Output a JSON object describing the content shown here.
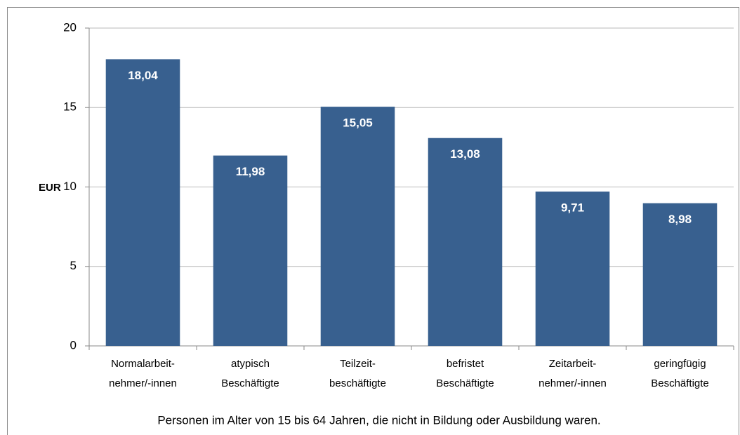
{
  "chart_data": {
    "type": "bar",
    "y_label": "EUR",
    "categories": [
      [
        "Normalarbeit-",
        "nehmer/-innen"
      ],
      [
        "atypisch",
        "Beschäftigte"
      ],
      [
        "Teilzeit-",
        "beschäftigte"
      ],
      [
        "befristet",
        "Beschäftigte"
      ],
      [
        "Zeitarbeit-",
        "nehmer/-innen"
      ],
      [
        "geringfügig",
        "Beschäftigte"
      ]
    ],
    "values": [
      18.04,
      11.98,
      15.05,
      13.08,
      9.71,
      8.98
    ],
    "value_labels": [
      "18,04",
      "11,98",
      "15,05",
      "13,08",
      "9,71",
      "8,98"
    ],
    "color": "#38608f",
    "ylim": [
      0,
      20
    ],
    "yticks": [
      0,
      5,
      10,
      15,
      20
    ],
    "grid": true,
    "annotation": "Personen im Alter von 15 bis 64 Jahren, die nicht in Bildung oder Ausbildung waren."
  }
}
